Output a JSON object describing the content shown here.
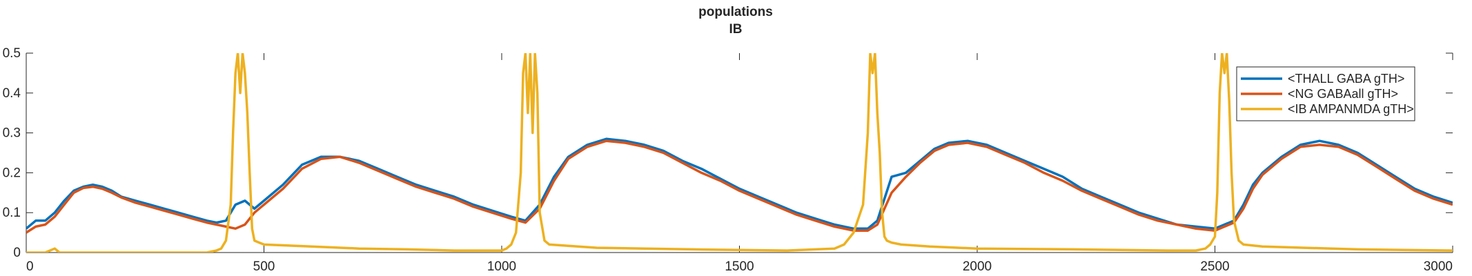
{
  "chart_data": {
    "type": "line",
    "title": "populations",
    "subtitle": "IB",
    "xlabel": "",
    "ylabel": "",
    "xlim": [
      0,
      3000
    ],
    "ylim": [
      0,
      0.5
    ],
    "x_ticks": [
      0,
      500,
      1000,
      1500,
      2000,
      2500,
      3000
    ],
    "x_tick_labels": [
      "0",
      "500",
      "1000",
      "1500",
      "2000",
      "2500",
      "3000"
    ],
    "y_ticks": [
      0,
      0.1,
      0.2,
      0.3,
      0.4,
      0.5
    ],
    "y_tick_labels": [
      "0",
      "0.1",
      "0.2",
      "0.3",
      "0.4",
      "0.5"
    ],
    "grid": false,
    "legend_position": "top-right",
    "series": [
      {
        "name": "<THALL GABA gTH>",
        "color": "#0072BD",
        "x": [
          0,
          20,
          40,
          60,
          80,
          100,
          120,
          140,
          160,
          180,
          200,
          230,
          260,
          290,
          320,
          350,
          380,
          400,
          420,
          440,
          460,
          480,
          500,
          540,
          580,
          620,
          660,
          700,
          740,
          780,
          820,
          860,
          900,
          940,
          980,
          1020,
          1050,
          1080,
          1110,
          1140,
          1180,
          1220,
          1260,
          1300,
          1340,
          1380,
          1420,
          1460,
          1500,
          1540,
          1580,
          1620,
          1660,
          1700,
          1740,
          1770,
          1790,
          1820,
          1850,
          1880,
          1910,
          1940,
          1980,
          2020,
          2060,
          2100,
          2140,
          2180,
          2220,
          2260,
          2300,
          2340,
          2380,
          2420,
          2460,
          2500,
          2520,
          2540,
          2560,
          2580,
          2600,
          2640,
          2680,
          2720,
          2760,
          2800,
          2840,
          2880,
          2920,
          2960,
          3000
        ],
        "values": [
          0.06,
          0.08,
          0.08,
          0.1,
          0.13,
          0.155,
          0.165,
          0.17,
          0.165,
          0.155,
          0.14,
          0.13,
          0.12,
          0.11,
          0.1,
          0.09,
          0.08,
          0.075,
          0.08,
          0.12,
          0.13,
          0.11,
          0.13,
          0.17,
          0.22,
          0.24,
          0.24,
          0.23,
          0.21,
          0.19,
          0.17,
          0.155,
          0.14,
          0.12,
          0.105,
          0.09,
          0.08,
          0.12,
          0.19,
          0.24,
          0.27,
          0.285,
          0.28,
          0.27,
          0.255,
          0.23,
          0.21,
          0.185,
          0.16,
          0.14,
          0.12,
          0.1,
          0.085,
          0.07,
          0.06,
          0.06,
          0.08,
          0.19,
          0.2,
          0.23,
          0.26,
          0.275,
          0.28,
          0.27,
          0.25,
          0.23,
          0.21,
          0.19,
          0.16,
          0.14,
          0.12,
          0.1,
          0.085,
          0.07,
          0.065,
          0.06,
          0.07,
          0.08,
          0.12,
          0.17,
          0.2,
          0.24,
          0.27,
          0.28,
          0.27,
          0.25,
          0.22,
          0.19,
          0.16,
          0.14,
          0.125
        ]
      },
      {
        "name": "<NG GABAall gTH>",
        "color": "#D95319",
        "x": [
          0,
          20,
          40,
          60,
          80,
          100,
          120,
          140,
          160,
          180,
          200,
          230,
          260,
          290,
          320,
          350,
          380,
          400,
          420,
          440,
          460,
          480,
          500,
          540,
          580,
          620,
          660,
          700,
          740,
          780,
          820,
          860,
          900,
          940,
          980,
          1020,
          1050,
          1080,
          1110,
          1140,
          1180,
          1220,
          1260,
          1300,
          1340,
          1380,
          1420,
          1460,
          1500,
          1540,
          1580,
          1620,
          1660,
          1700,
          1740,
          1770,
          1790,
          1820,
          1850,
          1880,
          1910,
          1940,
          1980,
          2020,
          2060,
          2100,
          2140,
          2180,
          2220,
          2260,
          2300,
          2340,
          2380,
          2420,
          2460,
          2500,
          2520,
          2540,
          2560,
          2580,
          2600,
          2640,
          2680,
          2720,
          2760,
          2800,
          2840,
          2880,
          2920,
          2960,
          3000
        ],
        "values": [
          0.05,
          0.065,
          0.07,
          0.09,
          0.12,
          0.15,
          0.162,
          0.165,
          0.16,
          0.15,
          0.138,
          0.125,
          0.115,
          0.105,
          0.095,
          0.085,
          0.075,
          0.07,
          0.065,
          0.06,
          0.07,
          0.1,
          0.12,
          0.16,
          0.21,
          0.235,
          0.24,
          0.225,
          0.205,
          0.185,
          0.165,
          0.15,
          0.135,
          0.115,
          0.1,
          0.085,
          0.075,
          0.11,
          0.18,
          0.235,
          0.265,
          0.28,
          0.275,
          0.265,
          0.25,
          0.225,
          0.2,
          0.18,
          0.155,
          0.135,
          0.115,
          0.095,
          0.08,
          0.065,
          0.055,
          0.055,
          0.07,
          0.15,
          0.19,
          0.225,
          0.255,
          0.27,
          0.275,
          0.265,
          0.245,
          0.225,
          0.2,
          0.18,
          0.155,
          0.135,
          0.115,
          0.095,
          0.08,
          0.07,
          0.06,
          0.055,
          0.065,
          0.075,
          0.11,
          0.16,
          0.195,
          0.235,
          0.265,
          0.27,
          0.265,
          0.245,
          0.215,
          0.185,
          0.155,
          0.135,
          0.12
        ]
      },
      {
        "name": "<IB AMPANMDA gTH>",
        "color": "#EDB120",
        "x": [
          0,
          40,
          60,
          70,
          80,
          200,
          380,
          400,
          410,
          420,
          430,
          435,
          440,
          445,
          450,
          455,
          460,
          465,
          470,
          475,
          480,
          490,
          500,
          600,
          700,
          800,
          900,
          980,
          1000,
          1010,
          1020,
          1030,
          1040,
          1045,
          1050,
          1055,
          1060,
          1065,
          1070,
          1075,
          1080,
          1090,
          1100,
          1200,
          1400,
          1600,
          1700,
          1720,
          1740,
          1760,
          1770,
          1775,
          1780,
          1785,
          1790,
          1795,
          1800,
          1805,
          1810,
          1820,
          1840,
          1900,
          2000,
          2200,
          2400,
          2460,
          2480,
          2490,
          2500,
          2505,
          2510,
          2515,
          2520,
          2525,
          2530,
          2535,
          2540,
          2550,
          2560,
          2600,
          2800,
          3000
        ],
        "values": [
          0.0,
          0.0,
          0.01,
          0.0,
          0.0,
          0.0,
          0.0,
          0.005,
          0.01,
          0.03,
          0.12,
          0.3,
          0.45,
          0.5,
          0.4,
          0.5,
          0.45,
          0.35,
          0.2,
          0.06,
          0.03,
          0.025,
          0.02,
          0.015,
          0.01,
          0.008,
          0.005,
          0.005,
          0.005,
          0.01,
          0.02,
          0.05,
          0.2,
          0.45,
          0.5,
          0.35,
          0.5,
          0.3,
          0.5,
          0.4,
          0.1,
          0.03,
          0.02,
          0.012,
          0.008,
          0.005,
          0.01,
          0.02,
          0.05,
          0.12,
          0.3,
          0.5,
          0.45,
          0.5,
          0.35,
          0.25,
          0.1,
          0.04,
          0.03,
          0.025,
          0.02,
          0.015,
          0.01,
          0.008,
          0.005,
          0.005,
          0.01,
          0.02,
          0.04,
          0.15,
          0.4,
          0.5,
          0.45,
          0.5,
          0.38,
          0.2,
          0.08,
          0.03,
          0.02,
          0.015,
          0.008,
          0.005
        ]
      }
    ]
  }
}
